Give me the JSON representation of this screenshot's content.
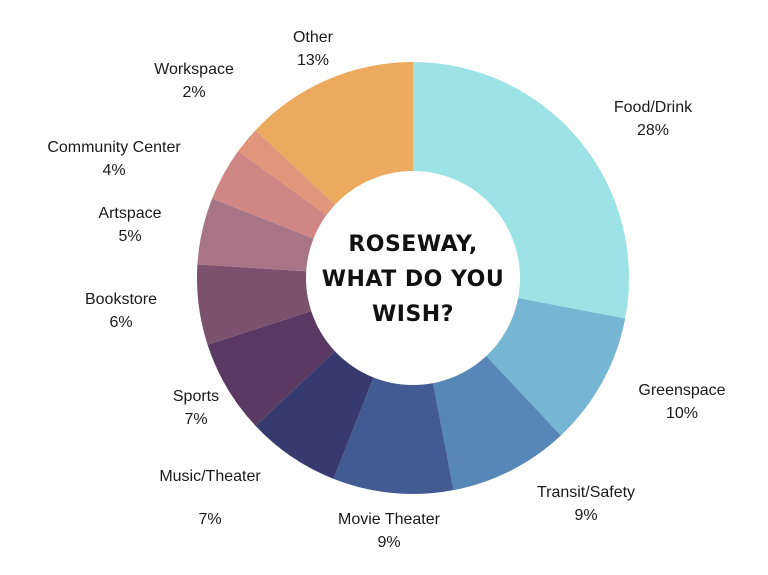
{
  "chart_data": {
    "type": "pie",
    "center_title_lines": [
      "ROSEWAY,",
      "WHAT DO YOU",
      "WISH?"
    ],
    "slices": [
      {
        "label": "Food/Drink",
        "value": 28,
        "display": "28%",
        "color": "#9DE3E6"
      },
      {
        "label": "Greenspace",
        "value": 10,
        "display": "10%",
        "color": "#76B6D3"
      },
      {
        "label": "Transit/Safety",
        "value": 9,
        "display": "9%",
        "color": "#5687B6"
      },
      {
        "label": "Movie Theater",
        "value": 9,
        "display": "9%",
        "color": "#435B93"
      },
      {
        "label": "Music/Theater",
        "value": 7,
        "display": "7%",
        "color": "#373A6E"
      },
      {
        "label": "Sports",
        "value": 7,
        "display": "7%",
        "color": "#5A3A63"
      },
      {
        "label": "Bookstore",
        "value": 6,
        "display": "6%",
        "color": "#7C516D"
      },
      {
        "label": "Artspace",
        "value": 5,
        "display": "5%",
        "color": "#A77585"
      },
      {
        "label": "Community Center",
        "value": 4,
        "display": "4%",
        "color": "#D08684"
      },
      {
        "label": "Workspace",
        "value": 2,
        "display": "2%",
        "color": "#E1957A"
      },
      {
        "label": "Other",
        "value": 13,
        "display": "13%",
        "color": "#EBAA5E"
      }
    ]
  }
}
